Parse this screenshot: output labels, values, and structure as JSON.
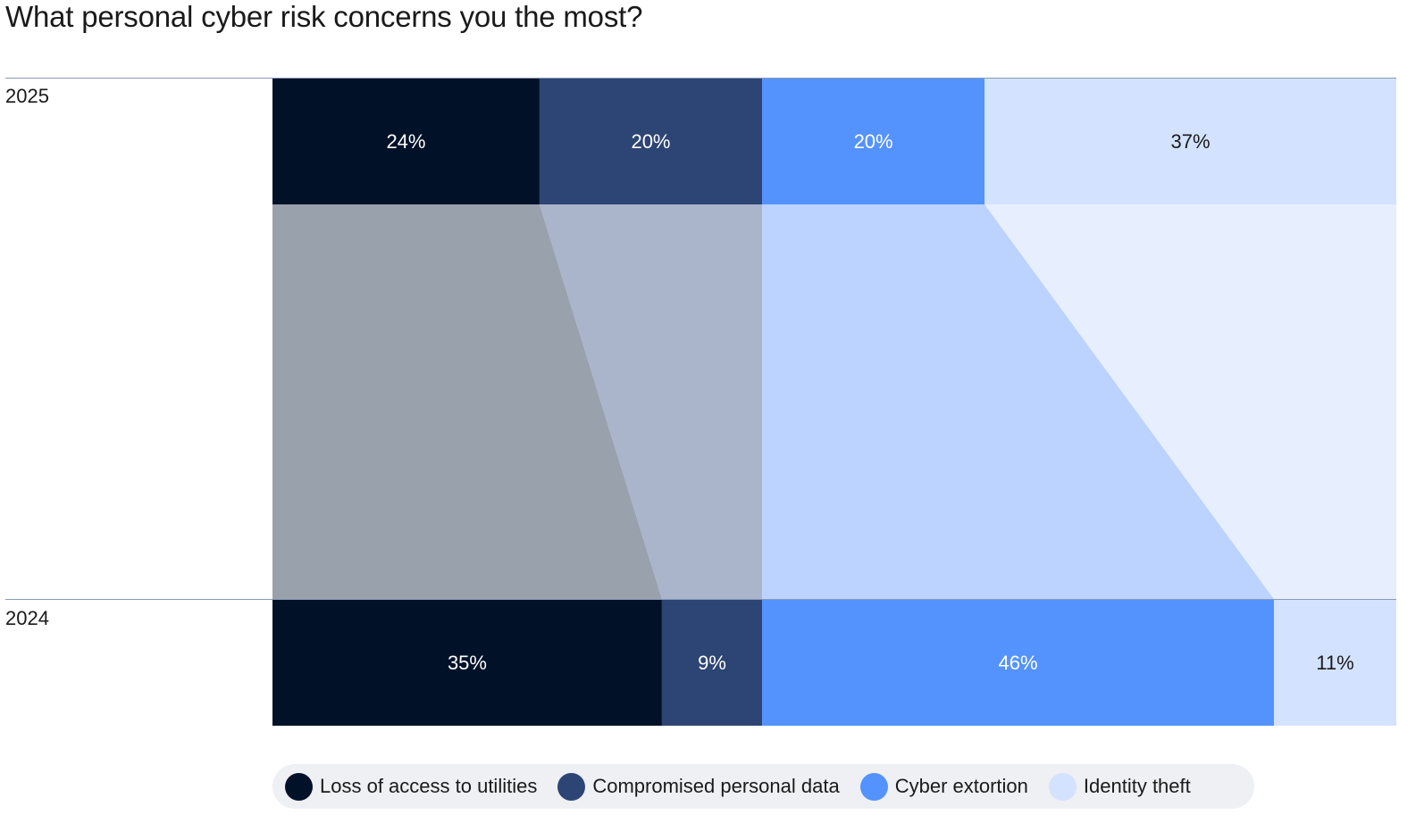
{
  "title": "What personal cyber risk concerns you the most?",
  "chart_data": {
    "type": "bar",
    "stacked": "100%",
    "orientation": "horizontal",
    "categories": [
      "2025",
      "2024"
    ],
    "series": [
      {
        "name": "Loss of access to utilities",
        "values": [
          24,
          35
        ],
        "color": "#011228",
        "flow_color": "#99a1ac"
      },
      {
        "name": "Compromised personal data",
        "values": [
          20,
          9
        ],
        "color": "#2d4574",
        "flow_color": "#aab4ca"
      },
      {
        "name": "Cyber extortion",
        "values": [
          20,
          46
        ],
        "color": "#5493fe",
        "flow_color": "#bbd3fe"
      },
      {
        "name": "Identity theft",
        "values": [
          37,
          11
        ],
        "color": "#d3e2fe",
        "flow_color": "#e7effe"
      }
    ],
    "value_labels": [
      [
        "24%",
        "20%",
        "20%",
        "37%"
      ],
      [
        "35%",
        "9%",
        "46%",
        "11%"
      ]
    ],
    "label_colors": [
      "#ffffff",
      "#ffffff",
      "#ffffff",
      "#1a1a1a"
    ],
    "legend": "bottom"
  }
}
